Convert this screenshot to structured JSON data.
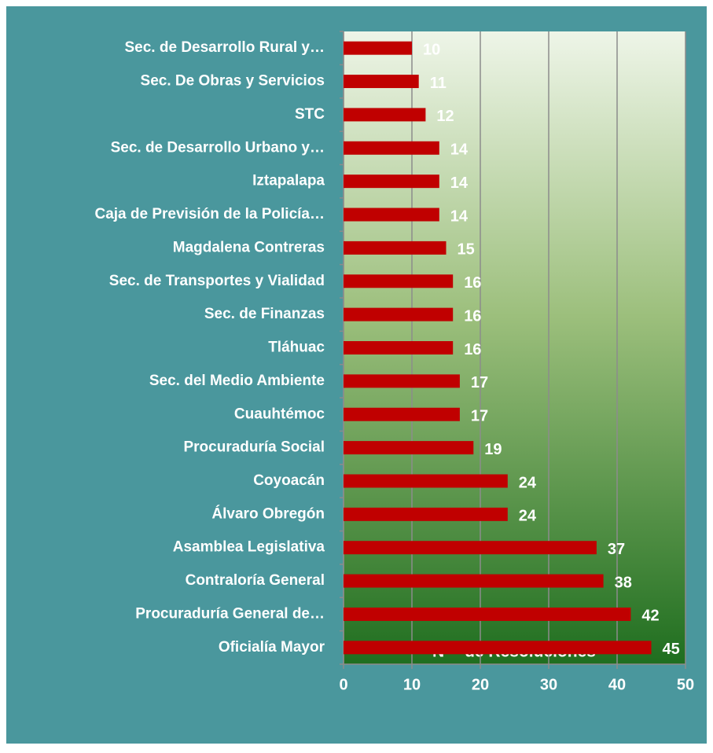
{
  "chart_data": {
    "type": "hbar",
    "x_label": "N°   de Resoluciones",
    "categories": [
      "Sec. de Desarrollo Rural y…",
      "Sec. De Obras y Servicios",
      "STC",
      "Sec. de Desarrollo Urbano y…",
      "Iztapalapa",
      "Caja de Previsión de la Policía…",
      "Magdalena Contreras",
      "Sec. de Transportes y Vialidad",
      "Sec. de Finanzas",
      "Tláhuac",
      "Sec. del Medio Ambiente",
      "Cuauhtémoc",
      "Procuraduría Social",
      "Coyoacán",
      "Álvaro Obregón",
      "Asamblea Legislativa",
      "Contraloría General",
      "Procuraduría General de…",
      "Oficialía Mayor"
    ],
    "values": [
      10,
      11,
      12,
      14,
      14,
      14,
      15,
      16,
      16,
      16,
      17,
      17,
      19,
      24,
      24,
      37,
      38,
      42,
      45
    ],
    "color": "#c00000",
    "xlim": [
      0,
      50
    ],
    "xticks": [
      0,
      10,
      20,
      30,
      40,
      50
    ],
    "grid": true
  }
}
